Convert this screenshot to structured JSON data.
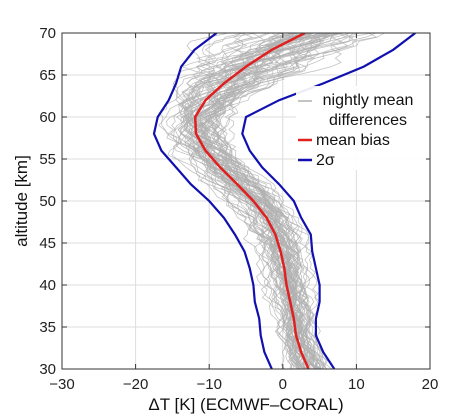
{
  "chart_data": {
    "type": "line",
    "xlabel": "ΔT [K] (ECMWF–CORAL)",
    "ylabel": "altitude [km]",
    "xlim": [
      -30,
      20
    ],
    "ylim": [
      30,
      70
    ],
    "xticks": [
      -30,
      -20,
      -10,
      0,
      10,
      20
    ],
    "yticks": [
      30,
      35,
      40,
      45,
      50,
      55,
      60,
      65,
      70
    ],
    "grid": true,
    "legend_position": "right",
    "legend": [
      {
        "label_line1": "nightly mean",
        "label_line2": "differences",
        "color": "#b0b0b0"
      },
      {
        "label": "mean bias",
        "color": "#e02020"
      },
      {
        "label": "2σ",
        "color": "#1010b0"
      }
    ],
    "series": [
      {
        "name": "mean bias",
        "color": "#e02020",
        "y": [
          30,
          32,
          34,
          36,
          38,
          40,
          42,
          44,
          46,
          48,
          50,
          52,
          54,
          56,
          58,
          60,
          62,
          64,
          66,
          68,
          70
        ],
        "x": [
          3.5,
          2.5,
          1.8,
          1.5,
          1.0,
          0.5,
          0.2,
          -0.3,
          -1.0,
          -2.2,
          -4.0,
          -6.2,
          -8.5,
          -10.5,
          -11.8,
          -11.9,
          -10.5,
          -8.0,
          -5.0,
          -1.5,
          3.0
        ]
      },
      {
        "name": "2σ lower",
        "color": "#1010b0",
        "y": [
          30,
          32,
          34,
          36,
          38,
          40,
          42,
          44,
          46,
          48,
          50,
          52,
          54,
          56,
          58,
          60,
          62,
          64,
          66,
          68,
          70
        ],
        "x": [
          -1.5,
          -2.5,
          -3.0,
          -3.2,
          -3.8,
          -4.0,
          -4.5,
          -5.2,
          -6.5,
          -8.0,
          -10.0,
          -12.5,
          -14.5,
          -16.5,
          -17.5,
          -17.0,
          -15.5,
          -14.5,
          -13.8,
          -12.0,
          -9.0
        ]
      },
      {
        "name": "2σ upper",
        "color": "#1010b0",
        "y": [
          30,
          32,
          34,
          36,
          38,
          40,
          42,
          44,
          46,
          48,
          50,
          52,
          54,
          56,
          58,
          60,
          62,
          64,
          66,
          68,
          70
        ],
        "x": [
          7.0,
          5.5,
          4.5,
          4.5,
          5.0,
          5.0,
          4.5,
          4.0,
          3.8,
          2.5,
          1.5,
          -0.5,
          -2.8,
          -4.5,
          -5.5,
          -5.0,
          -0.5,
          5.5,
          11.0,
          15.0,
          18.0
        ]
      }
    ]
  }
}
